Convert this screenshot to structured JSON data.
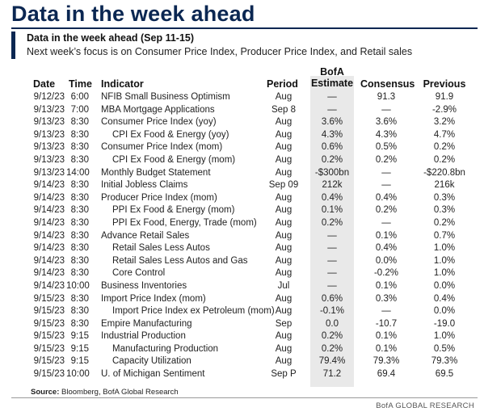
{
  "title": "Data in the week ahead",
  "subtitle": "Data in the week ahead (Sep 11-15)",
  "description": "Next week’s focus is on Consumer Price Index, Producer Price Index, and Retail sales",
  "headers": {
    "date": "Date",
    "time": "Time",
    "indicator": "Indicator",
    "period": "Period",
    "bofa_line1": "BofA",
    "bofa_line2": "Estimate",
    "consensus": "Consensus",
    "previous": "Previous"
  },
  "rows": [
    {
      "date": "9/12/23",
      "time": "6:00",
      "indicator": "NFIB Small Business Optimism",
      "sub": false,
      "period": "Aug",
      "bofa": "—",
      "consensus": "91.3",
      "previous": "91.9"
    },
    {
      "date": "9/13/23",
      "time": "7:00",
      "indicator": "MBA Mortgage Applications",
      "sub": false,
      "period": "Sep 8",
      "bofa": "—",
      "consensus": "—",
      "previous": "-2.9%"
    },
    {
      "date": "9/13/23",
      "time": "8:30",
      "indicator": "Consumer Price Index (yoy)",
      "sub": false,
      "period": "Aug",
      "bofa": "3.6%",
      "consensus": "3.6%",
      "previous": "3.2%"
    },
    {
      "date": "9/13/23",
      "time": "8:30",
      "indicator": "CPI Ex Food & Energy (yoy)",
      "sub": true,
      "period": "Aug",
      "bofa": "4.3%",
      "consensus": "4.3%",
      "previous": "4.7%"
    },
    {
      "date": "9/13/23",
      "time": "8:30",
      "indicator": "Consumer Price Index (mom)",
      "sub": false,
      "period": "Aug",
      "bofa": "0.6%",
      "consensus": "0.5%",
      "previous": "0.2%"
    },
    {
      "date": "9/13/23",
      "time": "8:30",
      "indicator": "CPI Ex Food & Energy (mom)",
      "sub": true,
      "period": "Aug",
      "bofa": "0.2%",
      "consensus": "0.2%",
      "previous": "0.2%"
    },
    {
      "date": "9/13/23",
      "time": "14:00",
      "indicator": "Monthly Budget Statement",
      "sub": false,
      "period": "Aug",
      "bofa": "-$300bn",
      "consensus": "—",
      "previous": "-$220.8bn"
    },
    {
      "date": "9/14/23",
      "time": "8:30",
      "indicator": "Initial Jobless Claims",
      "sub": false,
      "period": "Sep 09",
      "bofa": "212k",
      "consensus": "—",
      "previous": "216k"
    },
    {
      "date": "9/14/23",
      "time": "8:30",
      "indicator": "Producer Price Index (mom)",
      "sub": false,
      "period": "Aug",
      "bofa": "0.4%",
      "consensus": "0.4%",
      "previous": "0.3%"
    },
    {
      "date": "9/14/23",
      "time": "8:30",
      "indicator": "PPI Ex Food & Energy (mom)",
      "sub": true,
      "period": "Aug",
      "bofa": "0.1%",
      "consensus": "0.2%",
      "previous": "0.3%"
    },
    {
      "date": "9/14/23",
      "time": "8:30",
      "indicator": "PPI Ex Food, Energy, Trade (mom)",
      "sub": true,
      "period": "Aug",
      "bofa": "0.2%",
      "consensus": "—",
      "previous": "0.2%"
    },
    {
      "date": "9/14/23",
      "time": "8:30",
      "indicator": "Advance Retail Sales",
      "sub": false,
      "period": "Aug",
      "bofa": "—",
      "consensus": "0.1%",
      "previous": "0.7%"
    },
    {
      "date": "9/14/23",
      "time": "8:30",
      "indicator": "Retail Sales Less Autos",
      "sub": true,
      "period": "Aug",
      "bofa": "—",
      "consensus": "0.4%",
      "previous": "1.0%"
    },
    {
      "date": "9/14/23",
      "time": "8:30",
      "indicator": "Retail Sales Less Autos and Gas",
      "sub": true,
      "period": "Aug",
      "bofa": "—",
      "consensus": "0.0%",
      "previous": "1.0%"
    },
    {
      "date": "9/14/23",
      "time": "8:30",
      "indicator": "Core Control",
      "sub": true,
      "period": "Aug",
      "bofa": "—",
      "consensus": "-0.2%",
      "previous": "1.0%"
    },
    {
      "date": "9/14/23",
      "time": "10:00",
      "indicator": "Business Inventories",
      "sub": false,
      "period": "Jul",
      "bofa": "—",
      "consensus": "0.1%",
      "previous": "0.0%"
    },
    {
      "date": "9/15/23",
      "time": "8:30",
      "indicator": "Import Price Index (mom)",
      "sub": false,
      "period": "Aug",
      "bofa": "0.6%",
      "consensus": "0.3%",
      "previous": "0.4%"
    },
    {
      "date": "9/15/23",
      "time": "8:30",
      "indicator": "Import Price Index ex Petroleum (mom)",
      "sub": true,
      "period": "Aug",
      "bofa": "-0.1%",
      "consensus": "—",
      "previous": "0.0%"
    },
    {
      "date": "9/15/23",
      "time": "8:30",
      "indicator": "Empire Manufacturing",
      "sub": false,
      "period": "Sep",
      "bofa": "0.0",
      "consensus": "-10.7",
      "previous": "-19.0"
    },
    {
      "date": "9/15/23",
      "time": "9:15",
      "indicator": "Industrial Production",
      "sub": false,
      "period": "Aug",
      "bofa": "0.2%",
      "consensus": "0.1%",
      "previous": "1.0%"
    },
    {
      "date": "9/15/23",
      "time": "9:15",
      "indicator": "Manufacturing Production",
      "sub": true,
      "period": "Aug",
      "bofa": "0.2%",
      "consensus": "0.1%",
      "previous": "0.5%"
    },
    {
      "date": "9/15/23",
      "time": "9:15",
      "indicator": "Capacity Utilization",
      "sub": true,
      "period": "Aug",
      "bofa": "79.4%",
      "consensus": "79.3%",
      "previous": "79.3%"
    },
    {
      "date": "9/15/23",
      "time": "10:00",
      "indicator": "U. of Michigan Sentiment",
      "sub": false,
      "period": "Sep P",
      "bofa": "71.2",
      "consensus": "69.4",
      "previous": "69.5"
    }
  ],
  "source_label": "Source:",
  "source_text": "Bloomberg, BofA Global Research",
  "brand": "BofA GLOBAL RESEARCH",
  "colors": {
    "accent": "#0b2752",
    "shade": "#e9e9e9"
  }
}
